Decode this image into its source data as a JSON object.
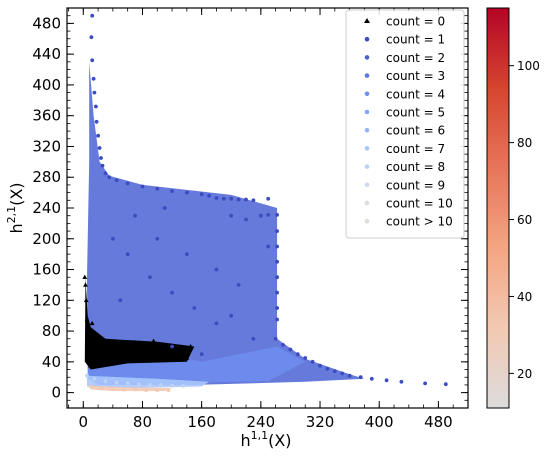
{
  "chart_data": {
    "type": "scatter",
    "xlabel_base": "h",
    "xlabel_sup": "1,1",
    "xlabel_suffix": "(X)",
    "ylabel_base": "h",
    "ylabel_sup": "2,1",
    "ylabel_suffix": "(X)",
    "xlim": [
      -22,
      520
    ],
    "ylim": [
      -20,
      500
    ],
    "xticks": [
      0,
      80,
      160,
      240,
      320,
      400,
      480
    ],
    "yticks": [
      0,
      40,
      80,
      120,
      160,
      200,
      240,
      280,
      320,
      360,
      400,
      440,
      480
    ],
    "grid": false,
    "legend_position": "top-right",
    "legend": [
      {
        "label": "count = 0",
        "marker": "triangle",
        "color": "#000000"
      },
      {
        "label": "count = 1",
        "marker": "circle",
        "color": "#3b4cc0"
      },
      {
        "label": "count = 2",
        "marker": "circle",
        "color": "#4a63d3"
      },
      {
        "label": "count = 3",
        "marker": "circle",
        "color": "#5b7ae5"
      },
      {
        "label": "count = 4",
        "marker": "circle",
        "color": "#6f90f0"
      },
      {
        "label": "count = 5",
        "marker": "circle",
        "color": "#82a6fb"
      },
      {
        "label": "count = 6",
        "marker": "circle",
        "color": "#96b7ff"
      },
      {
        "label": "count = 7",
        "marker": "circle",
        "color": "#a9c6fd"
      },
      {
        "label": "count = 8",
        "marker": "circle",
        "color": "#bcd2f7"
      },
      {
        "label": "count = 9",
        "marker": "circle",
        "color": "#cdd9ec"
      },
      {
        "label": "count = 10",
        "marker": "circle",
        "color": "#dcdde1"
      },
      {
        "label": "count > 10",
        "marker": "circle",
        "color": "#e3dcd8"
      }
    ],
    "colorbar": {
      "range": [
        11,
        115
      ],
      "ticks": [
        20,
        40,
        60,
        80,
        100
      ],
      "colors": [
        "#dcdcdc",
        "#f2c9b2",
        "#f4a582",
        "#e7755a",
        "#d6452f",
        "#b40426"
      ]
    },
    "series": [
      {
        "marker": "circle",
        "color": "#3b4cc0",
        "points": [
          [
            12,
            490
          ],
          [
            11,
            462
          ],
          [
            12,
            432
          ],
          [
            14,
            408
          ],
          [
            15,
            390
          ],
          [
            17,
            372
          ],
          [
            18,
            352
          ],
          [
            20,
            334
          ],
          [
            22,
            318
          ],
          [
            24,
            305
          ],
          [
            26,
            295
          ],
          [
            30,
            285
          ],
          [
            35,
            280
          ],
          [
            45,
            276
          ],
          [
            60,
            272
          ],
          [
            80,
            268
          ],
          [
            100,
            265
          ],
          [
            120,
            262
          ],
          [
            140,
            260
          ],
          [
            160,
            258
          ],
          [
            170,
            256
          ],
          [
            180,
            253
          ],
          [
            190,
            252
          ],
          [
            200,
            252
          ],
          [
            210,
            251
          ],
          [
            220,
            251
          ],
          [
            230,
            250
          ],
          [
            250,
            252
          ],
          [
            262,
            231
          ],
          [
            262,
            210
          ],
          [
            262,
            190
          ],
          [
            262,
            170
          ],
          [
            262,
            150
          ],
          [
            262,
            130
          ],
          [
            262,
            110
          ],
          [
            262,
            95
          ],
          [
            250,
            231
          ],
          [
            240,
            230
          ],
          [
            250,
            190
          ],
          [
            220,
            225
          ],
          [
            200,
            230
          ],
          [
            260,
            70
          ],
          [
            270,
            62
          ],
          [
            280,
            56
          ],
          [
            290,
            50
          ],
          [
            300,
            45
          ],
          [
            310,
            40
          ],
          [
            320,
            35
          ],
          [
            330,
            31
          ],
          [
            340,
            28
          ],
          [
            350,
            25
          ],
          [
            360,
            22
          ],
          [
            375,
            20
          ],
          [
            390,
            18
          ],
          [
            410,
            16
          ],
          [
            430,
            14
          ],
          [
            462,
            12
          ],
          [
            490,
            11
          ],
          [
            40,
            200
          ],
          [
            60,
            180
          ],
          [
            90,
            150
          ],
          [
            120,
            130
          ],
          [
            150,
            110
          ],
          [
            180,
            90
          ],
          [
            200,
            100
          ],
          [
            230,
            70
          ],
          [
            100,
            200
          ],
          [
            140,
            180
          ],
          [
            180,
            160
          ],
          [
            210,
            140
          ],
          [
            70,
            230
          ],
          [
            110,
            240
          ],
          [
            50,
            120
          ],
          [
            120,
            60
          ],
          [
            160,
            50
          ]
        ]
      },
      {
        "marker": "triangle",
        "color": "#000000",
        "points": [
          [
            2,
            150
          ],
          [
            3,
            140
          ],
          [
            4,
            120
          ],
          [
            5,
            95
          ],
          [
            6,
            80
          ],
          [
            7,
            60
          ],
          [
            8,
            50
          ],
          [
            9,
            40
          ],
          [
            10,
            35
          ],
          [
            12,
            90
          ],
          [
            15,
            75
          ],
          [
            20,
            65
          ],
          [
            25,
            60
          ],
          [
            30,
            55
          ],
          [
            40,
            60
          ],
          [
            50,
            62
          ],
          [
            60,
            64
          ],
          [
            70,
            65
          ],
          [
            80,
            60
          ],
          [
            90,
            58
          ],
          [
            100,
            55
          ],
          [
            110,
            52
          ],
          [
            120,
            50
          ],
          [
            130,
            48
          ],
          [
            140,
            45
          ],
          [
            145,
            60
          ],
          [
            105,
            62
          ],
          [
            95,
            67
          ],
          [
            70,
            45
          ],
          [
            55,
            40
          ]
        ]
      },
      {
        "marker": "circle",
        "color": "#bcd2f7",
        "points": [
          [
            5,
            22
          ],
          [
            15,
            18
          ],
          [
            30,
            15
          ],
          [
            45,
            13
          ],
          [
            60,
            12
          ],
          [
            75,
            11
          ],
          [
            90,
            10
          ],
          [
            105,
            10
          ],
          [
            120,
            9
          ],
          [
            135,
            9
          ]
        ]
      },
      {
        "marker": "circle",
        "color": "#f2c9b2",
        "points": [
          [
            10,
            8
          ],
          [
            25,
            6
          ],
          [
            40,
            5
          ],
          [
            55,
            4
          ],
          [
            70,
            4
          ],
          [
            85,
            3
          ],
          [
            100,
            3
          ],
          [
            115,
            3
          ]
        ]
      }
    ]
  }
}
